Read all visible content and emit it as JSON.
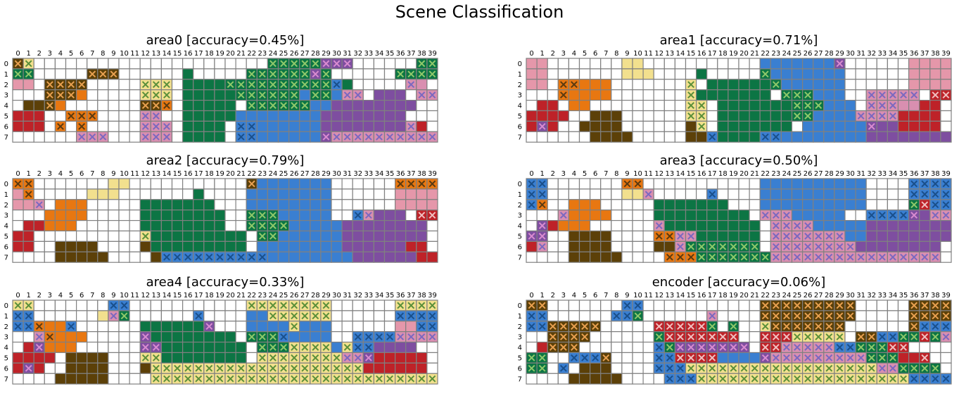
{
  "suptitle": "Scene Classification",
  "colors": {
    "grid": "#808080",
    "empty": "#ffffff",
    "classes": {
      "brown": "#5c4008",
      "yellow": "#f2e08e",
      "pink": "#e597aa",
      "orange": "#e87711",
      "green": "#0c7544",
      "blue": "#3a7fd1",
      "purple": "#7e4ea0",
      "red": "#be2228",
      "lightpink": "#d98fb0"
    },
    "x_marks": {
      "brown": "#e8a050",
      "yellow": "#5a8f3a",
      "pink": "#d36d8e",
      "orange": "#5a3a10",
      "green": "#8fc86a",
      "blue": "#1a4f8a",
      "purple": "#d98bd0",
      "red": "#f0c0c0",
      "lightpink": "#7a68c0"
    }
  },
  "chart_data": [
    {
      "type": "heatmap",
      "title": "area0 [accuracy=0.45%]",
      "x_ticks": [
        0,
        1,
        2,
        3,
        4,
        5,
        6,
        7,
        8,
        9,
        10,
        11,
        12,
        13,
        14,
        15,
        16,
        17,
        18,
        19,
        20,
        21,
        22,
        23,
        24,
        25,
        26,
        27,
        28,
        29,
        30,
        31,
        32,
        33,
        34,
        35,
        36,
        37,
        38,
        39
      ],
      "y_ticks": [
        0,
        1,
        2,
        3,
        4,
        5,
        6,
        7
      ],
      "rows": [
        "BY...........BBBBBPPP......BBBB",
        "BB.....BBB.......G.....BBBBBBPB......BBBB",
        "PP.OOOO........YYY.GGGGGGGGGGGGGG.BBBBBBBBB.......PP..",
        ".......",
        ".......",
        ".......",
        ".......",
        "......."
      ],
      "cells": [
        "bY.............b.b.bb.b.pp.g.",
        "",
        "",
        "",
        "",
        "",
        "",
        ""
      ]
    }
  ]
}
